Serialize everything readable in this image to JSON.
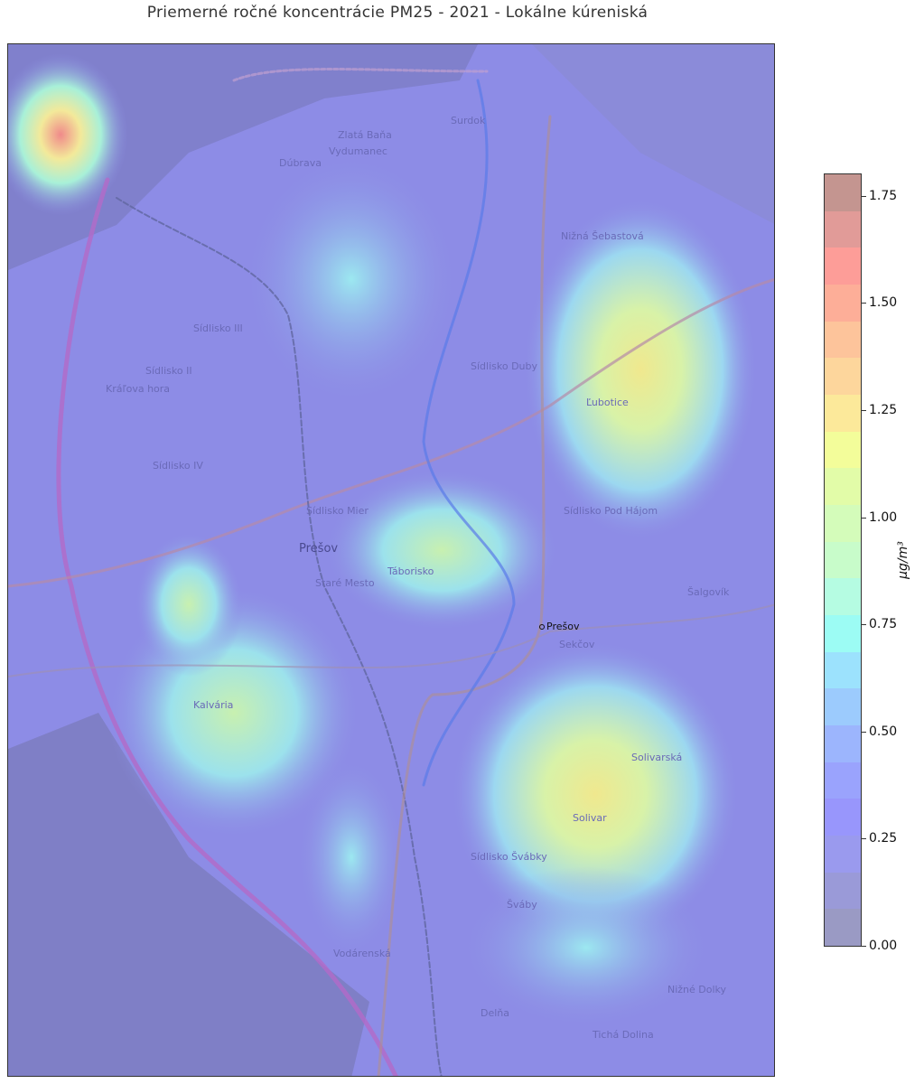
{
  "title": "Priemerné ročné koncentrácie PM25 - 2021 - Lokálne kúreniská",
  "colorbar": {
    "label": "µg/m³",
    "min": 0.0,
    "max": 1.8,
    "ticks": [
      "0.00",
      "0.25",
      "0.50",
      "0.75",
      "1.00",
      "1.25",
      "1.50",
      "1.75"
    ],
    "tick_values": [
      0,
      0.25,
      0.5,
      0.75,
      1.0,
      1.25,
      1.5,
      1.75
    ],
    "levels": 20,
    "colors": [
      "#9a9ac4",
      "#9a9ad8",
      "#9a9aee",
      "#9896fc",
      "#9aa3fd",
      "#9cb5fd",
      "#9ccbfd",
      "#9ce2fd",
      "#9cfcf4",
      "#b5fce2",
      "#c8fcca",
      "#d4fcba",
      "#e2fca8",
      "#f3fd9a",
      "#fce99a",
      "#fdd69c",
      "#fdc49b",
      "#fdae98",
      "#fd9d98",
      "#e19b98"
    ],
    "top_color": "#c49590"
  },
  "map": {
    "base_color": "#8d8ce6",
    "marker": {
      "label": "Prešov"
    },
    "labels": [
      "Sídlisko Mier",
      "Prešov",
      "Táborisko",
      "Staré Mesto",
      "Sídlisko Pod Hájom",
      "Sekčov",
      "Šalgovík",
      "Solivar",
      "Solivarská",
      "Sídlisko Švábky",
      "Šváby",
      "Delňa",
      "Nižné Dolky",
      "Tichá Dolina",
      "Ľubotice",
      "Nižná Šebastová",
      "Sídlisko Duby",
      "Sídlisko III",
      "Sídlisko II",
      "Kráľova hora",
      "Kalvária",
      "Vydumanec",
      "Dúbrava",
      "Surdok",
      "Zlatá Baňa",
      "Sídlisko IV",
      "Vodárenská"
    ],
    "hotspots": [
      {
        "area": "northwest corner",
        "value": 1.6
      },
      {
        "area": "Ľubotice",
        "value": 1.25
      },
      {
        "area": "Solivar",
        "value": 1.3
      },
      {
        "area": "Táborisko",
        "value": 1.0
      },
      {
        "area": "Kalvária",
        "value": 1.0
      },
      {
        "area": "Šváby",
        "value": 0.8
      }
    ]
  }
}
